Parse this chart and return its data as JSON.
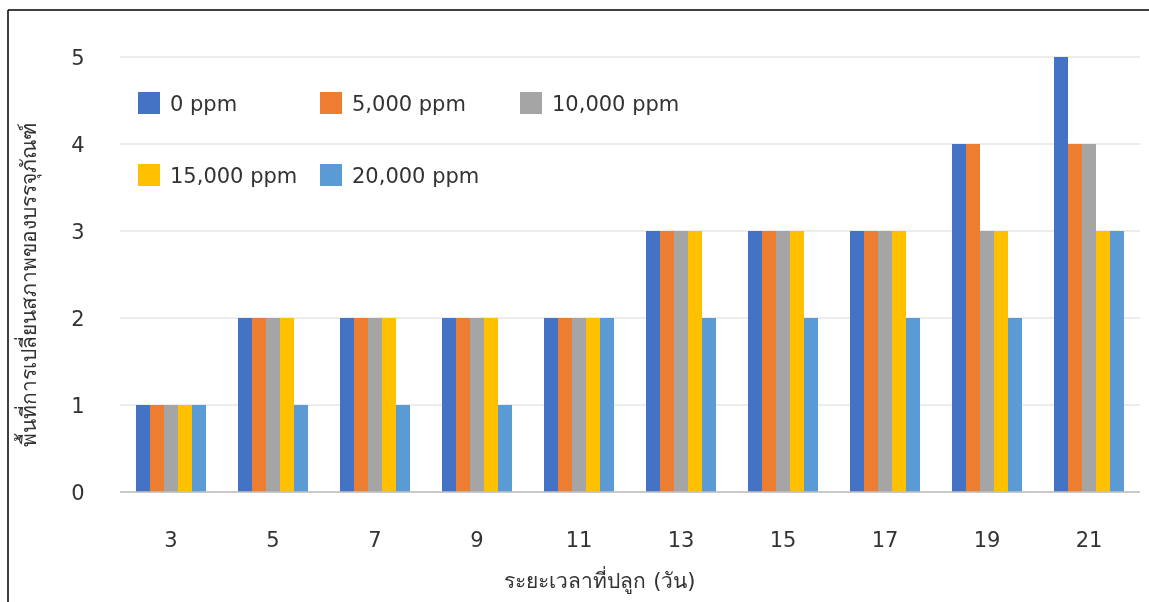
{
  "chart_data": {
    "type": "bar",
    "ylabel": "พื้นที่การเปลี่ยนสภาพของบรรจุภัณฑ์",
    "xlabel": "ระยะเวลาที่ปลูก (วัน)",
    "categories": [
      "3",
      "5",
      "7",
      "9",
      "11",
      "13",
      "15",
      "17",
      "19",
      "21"
    ],
    "series": [
      {
        "name": "0 ppm",
        "color": "#4472c4",
        "values": [
          1,
          2,
          2,
          2,
          2,
          3,
          3,
          3,
          4,
          5
        ]
      },
      {
        "name": "5,000 ppm",
        "color": "#ed7d31",
        "values": [
          1,
          2,
          2,
          2,
          2,
          3,
          3,
          3,
          4,
          4
        ]
      },
      {
        "name": "10,000 ppm",
        "color": "#a5a5a5",
        "values": [
          1,
          2,
          2,
          2,
          2,
          3,
          3,
          3,
          3,
          4
        ]
      },
      {
        "name": "15,000 ppm",
        "color": "#ffc000",
        "values": [
          1,
          2,
          2,
          2,
          2,
          3,
          3,
          3,
          3,
          3
        ]
      },
      {
        "name": "20,000 ppm",
        "color": "#5b9bd5",
        "values": [
          1,
          1,
          1,
          1,
          2,
          2,
          2,
          2,
          2,
          3
        ]
      }
    ],
    "ylim": [
      0,
      5
    ],
    "yticks": [
      0,
      1,
      2,
      3,
      4,
      5
    ],
    "grid": "y",
    "legend": "top left"
  }
}
